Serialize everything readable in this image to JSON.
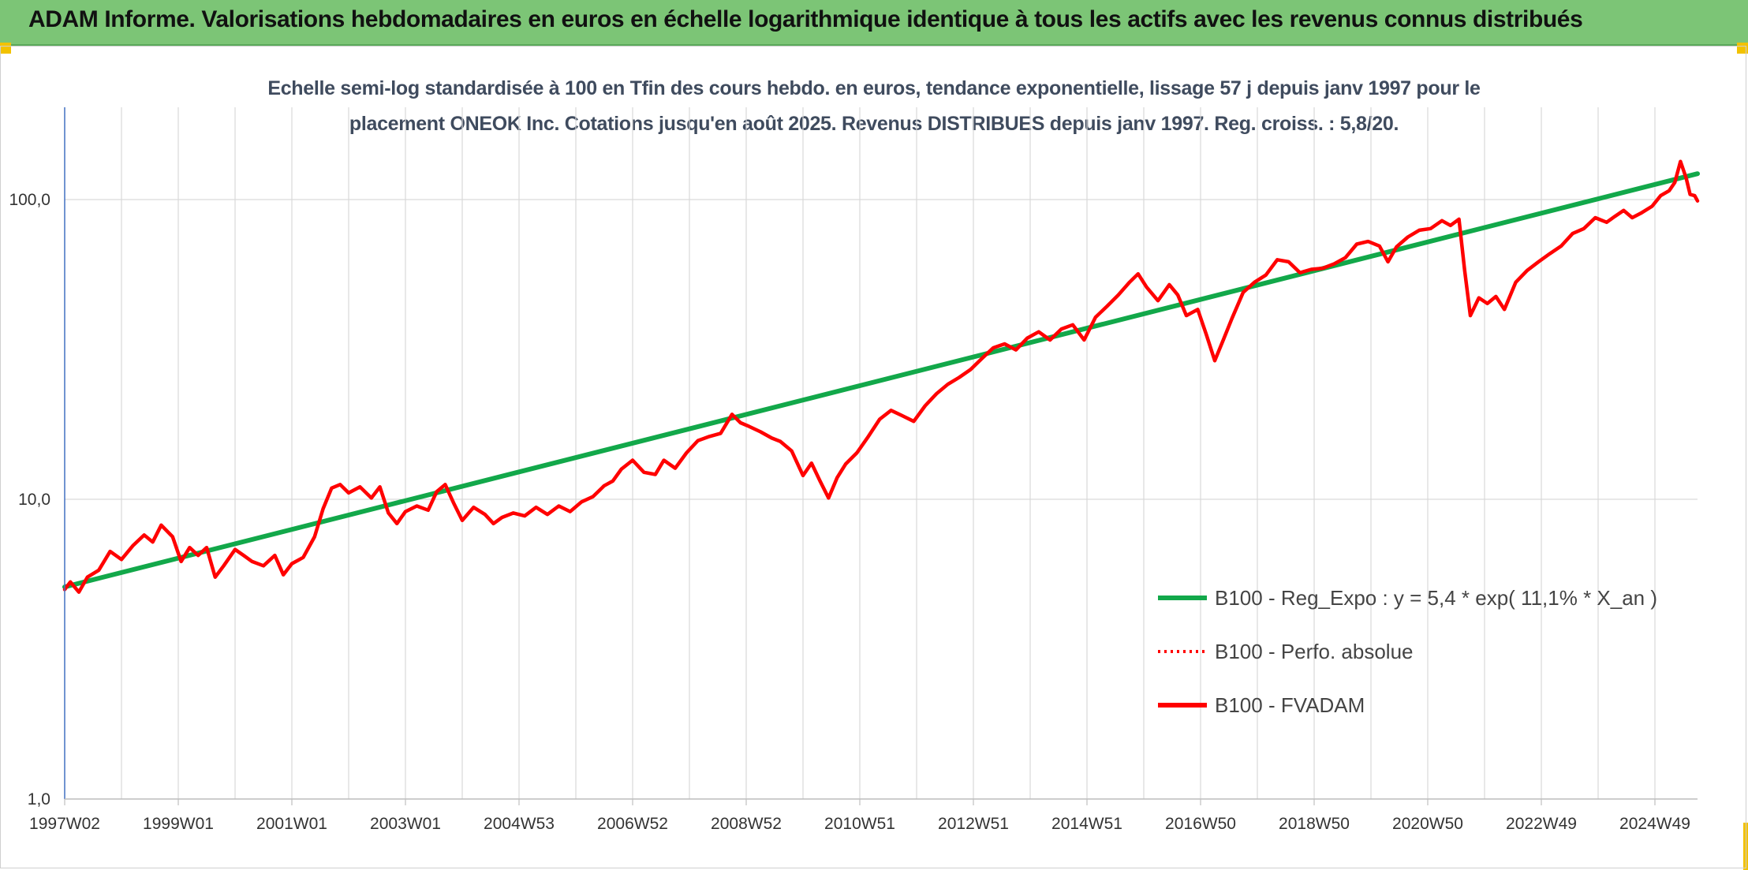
{
  "header": {
    "title": "ADAM Informe. Valorisations hebdomadaires en euros en échelle logarithmique identique à tous les actifs avec les revenus connus distribués"
  },
  "colors": {
    "header_bg": "#7cc576",
    "trend_line": "#12a84a",
    "fvadam_line": "#ff0000",
    "perfo_line": "#ff0000",
    "corner_marker": "#f2c200"
  },
  "chart_data": {
    "type": "line",
    "title_line1": "Echelle semi-log standardisée à 100 en Tfin des cours hebdo. en euros, tendance exponentielle, lissage 57 j depuis janv 1997 pour le",
    "title_line2": "placement ONEOK Inc. Cotations jusqu'en août 2025. Revenus DISTRIBUES depuis janv 1997. Reg. croiss. : 5,8/20.",
    "y_scale": "log",
    "ylim": [
      1,
      150
    ],
    "xlim": [
      1997.0,
      2025.75
    ],
    "y_ticks": [
      {
        "value": 1,
        "label": "1,0"
      },
      {
        "value": 10,
        "label": "10,0"
      },
      {
        "value": 100,
        "label": "100,0"
      }
    ],
    "x_ticks": [
      {
        "value": 1997.0,
        "label": "1997W02"
      },
      {
        "value": 1999.0,
        "label": "1999W01"
      },
      {
        "value": 2001.0,
        "label": "2001W01"
      },
      {
        "value": 2003.0,
        "label": "2003W01"
      },
      {
        "value": 2005.0,
        "label": "2004W53"
      },
      {
        "value": 2007.0,
        "label": "2006W52"
      },
      {
        "value": 2009.0,
        "label": "2008W52"
      },
      {
        "value": 2011.0,
        "label": "2010W51"
      },
      {
        "value": 2013.0,
        "label": "2012W51"
      },
      {
        "value": 2015.0,
        "label": "2014W51"
      },
      {
        "value": 2017.0,
        "label": "2016W50"
      },
      {
        "value": 2019.0,
        "label": "2018W50"
      },
      {
        "value": 2021.0,
        "label": "2020W50"
      },
      {
        "value": 2023.0,
        "label": "2022W49"
      },
      {
        "value": 2025.0,
        "label": "2024W49"
      }
    ],
    "grid": true,
    "legend_position": "bottom-right",
    "series": [
      {
        "name": "B100 - Reg_Expo : y = 5,4 * exp( 11,1% *  X_an )",
        "style": "solid",
        "color": "#12a84a",
        "points": [
          [
            1997.0,
            5.1
          ],
          [
            2025.75,
            122.0
          ]
        ]
      },
      {
        "name": "B100 - Perfo. absolue",
        "style": "dotted",
        "color": "#ff0000",
        "points": []
      },
      {
        "name": "B100 - FVADAM",
        "style": "solid",
        "color": "#ff0000",
        "points": [
          [
            1997.0,
            5.0
          ],
          [
            1997.1,
            5.3
          ],
          [
            1997.25,
            4.9
          ],
          [
            1997.4,
            5.5
          ],
          [
            1997.6,
            5.8
          ],
          [
            1997.8,
            6.7
          ],
          [
            1998.0,
            6.3
          ],
          [
            1998.2,
            7.0
          ],
          [
            1998.4,
            7.6
          ],
          [
            1998.55,
            7.2
          ],
          [
            1998.7,
            8.2
          ],
          [
            1998.9,
            7.5
          ],
          [
            1999.05,
            6.2
          ],
          [
            1999.2,
            6.9
          ],
          [
            1999.35,
            6.5
          ],
          [
            1999.5,
            6.9
          ],
          [
            1999.65,
            5.5
          ],
          [
            1999.8,
            6.0
          ],
          [
            2000.0,
            6.8
          ],
          [
            2000.15,
            6.5
          ],
          [
            2000.3,
            6.2
          ],
          [
            2000.5,
            6.0
          ],
          [
            2000.7,
            6.5
          ],
          [
            2000.85,
            5.6
          ],
          [
            2001.0,
            6.1
          ],
          [
            2001.2,
            6.4
          ],
          [
            2001.4,
            7.5
          ],
          [
            2001.55,
            9.3
          ],
          [
            2001.7,
            10.9
          ],
          [
            2001.85,
            11.2
          ],
          [
            2002.0,
            10.5
          ],
          [
            2002.2,
            11.0
          ],
          [
            2002.4,
            10.1
          ],
          [
            2002.55,
            11.0
          ],
          [
            2002.7,
            9.0
          ],
          [
            2002.85,
            8.3
          ],
          [
            2003.0,
            9.1
          ],
          [
            2003.2,
            9.5
          ],
          [
            2003.4,
            9.2
          ],
          [
            2003.55,
            10.6
          ],
          [
            2003.7,
            11.2
          ],
          [
            2003.85,
            9.7
          ],
          [
            2004.0,
            8.5
          ],
          [
            2004.2,
            9.4
          ],
          [
            2004.4,
            8.9
          ],
          [
            2004.55,
            8.3
          ],
          [
            2004.7,
            8.7
          ],
          [
            2004.9,
            9.0
          ],
          [
            2005.1,
            8.8
          ],
          [
            2005.3,
            9.4
          ],
          [
            2005.5,
            8.9
          ],
          [
            2005.7,
            9.5
          ],
          [
            2005.9,
            9.1
          ],
          [
            2006.1,
            9.8
          ],
          [
            2006.3,
            10.2
          ],
          [
            2006.5,
            11.1
          ],
          [
            2006.65,
            11.5
          ],
          [
            2006.8,
            12.6
          ],
          [
            2007.0,
            13.5
          ],
          [
            2007.2,
            12.3
          ],
          [
            2007.4,
            12.1
          ],
          [
            2007.55,
            13.5
          ],
          [
            2007.75,
            12.7
          ],
          [
            2007.95,
            14.3
          ],
          [
            2008.15,
            15.7
          ],
          [
            2008.35,
            16.2
          ],
          [
            2008.55,
            16.6
          ],
          [
            2008.75,
            19.2
          ],
          [
            2008.9,
            18.0
          ],
          [
            2009.05,
            17.5
          ],
          [
            2009.25,
            16.8
          ],
          [
            2009.45,
            16.0
          ],
          [
            2009.6,
            15.6
          ],
          [
            2009.8,
            14.5
          ],
          [
            2010.0,
            12.0
          ],
          [
            2010.15,
            13.2
          ],
          [
            2010.3,
            11.5
          ],
          [
            2010.45,
            10.1
          ],
          [
            2010.6,
            11.8
          ],
          [
            2010.75,
            13.1
          ],
          [
            2010.95,
            14.3
          ],
          [
            2011.15,
            16.2
          ],
          [
            2011.35,
            18.5
          ],
          [
            2011.55,
            19.8
          ],
          [
            2011.75,
            19.0
          ],
          [
            2011.95,
            18.2
          ],
          [
            2012.15,
            20.5
          ],
          [
            2012.35,
            22.5
          ],
          [
            2012.55,
            24.2
          ],
          [
            2012.75,
            25.5
          ],
          [
            2012.95,
            27.1
          ],
          [
            2013.15,
            29.5
          ],
          [
            2013.35,
            32.0
          ],
          [
            2013.55,
            33.0
          ],
          [
            2013.75,
            31.5
          ],
          [
            2013.95,
            34.5
          ],
          [
            2014.15,
            36.2
          ],
          [
            2014.35,
            34.0
          ],
          [
            2014.55,
            37.0
          ],
          [
            2014.75,
            38.2
          ],
          [
            2014.95,
            34.0
          ],
          [
            2015.15,
            40.5
          ],
          [
            2015.35,
            44.0
          ],
          [
            2015.55,
            48.0
          ],
          [
            2015.75,
            53.0
          ],
          [
            2015.9,
            56.5
          ],
          [
            2016.05,
            51.0
          ],
          [
            2016.25,
            46.0
          ],
          [
            2016.45,
            52.0
          ],
          [
            2016.6,
            48.0
          ],
          [
            2016.75,
            41.0
          ],
          [
            2016.95,
            43.0
          ],
          [
            2017.1,
            35.5
          ],
          [
            2017.25,
            29.0
          ],
          [
            2017.4,
            34.0
          ],
          [
            2017.55,
            40.0
          ],
          [
            2017.75,
            49.0
          ],
          [
            2017.95,
            53.0
          ],
          [
            2018.15,
            56.0
          ],
          [
            2018.35,
            63.0
          ],
          [
            2018.55,
            62.0
          ],
          [
            2018.75,
            57.0
          ],
          [
            2018.95,
            58.5
          ],
          [
            2019.15,
            59.0
          ],
          [
            2019.35,
            61.0
          ],
          [
            2019.55,
            64.0
          ],
          [
            2019.75,
            71.0
          ],
          [
            2019.95,
            72.5
          ],
          [
            2020.15,
            70.0
          ],
          [
            2020.3,
            62.0
          ],
          [
            2020.45,
            69.5
          ],
          [
            2020.65,
            75.0
          ],
          [
            2020.85,
            79.0
          ],
          [
            2021.05,
            80.0
          ],
          [
            2021.25,
            85.0
          ],
          [
            2021.4,
            82.0
          ],
          [
            2021.55,
            86.0
          ],
          [
            2021.65,
            58.0
          ],
          [
            2021.75,
            41.0
          ],
          [
            2021.9,
            47.0
          ],
          [
            2022.05,
            45.0
          ],
          [
            2022.2,
            47.5
          ],
          [
            2022.35,
            43.0
          ],
          [
            2022.55,
            53.0
          ],
          [
            2022.75,
            58.0
          ],
          [
            2022.95,
            62.0
          ],
          [
            2023.15,
            66.0
          ],
          [
            2023.35,
            70.0
          ],
          [
            2023.55,
            77.0
          ],
          [
            2023.75,
            80.0
          ],
          [
            2023.95,
            87.0
          ],
          [
            2024.15,
            84.0
          ],
          [
            2024.3,
            88.0
          ],
          [
            2024.45,
            92.0
          ],
          [
            2024.6,
            87.0
          ],
          [
            2024.75,
            90.0
          ],
          [
            2024.95,
            95.0
          ],
          [
            2025.1,
            103.0
          ],
          [
            2025.25,
            107.0
          ],
          [
            2025.35,
            114.0
          ],
          [
            2025.45,
            134.0
          ],
          [
            2025.55,
            118.0
          ],
          [
            2025.62,
            104.0
          ],
          [
            2025.7,
            103.0
          ],
          [
            2025.75,
            99.0
          ]
        ]
      }
    ]
  }
}
